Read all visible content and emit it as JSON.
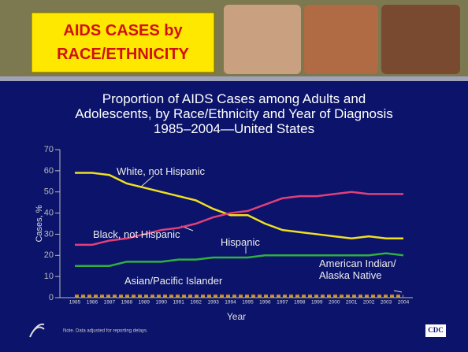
{
  "header": {
    "title": "AIDS CASES by\nRACE/ETHNICITY"
  },
  "chart_data": {
    "type": "line",
    "title": "Proportion of AIDS Cases among Adults and\nAdolescents, by Race/Ethnicity and Year of Diagnosis\n1985–2004—United States",
    "x_label": "Year",
    "y_label": "Cases, %",
    "categories": [
      "1985",
      "1986",
      "1987",
      "1988",
      "1989",
      "1990",
      "1991",
      "1992",
      "1993",
      "1994",
      "1995",
      "1996",
      "1997",
      "1998",
      "1999",
      "2000",
      "2001",
      "2002",
      "2003",
      "2004"
    ],
    "ylim": [
      0,
      70
    ],
    "yticks": [
      0,
      10,
      20,
      30,
      40,
      50,
      60,
      70
    ],
    "series": [
      {
        "name": "White, not Hispanic",
        "color": "#f0e020",
        "values": [
          59,
          59,
          58,
          54,
          52,
          50,
          48,
          46,
          42,
          39,
          39,
          35,
          32,
          31,
          30,
          29,
          28,
          29,
          28,
          28
        ]
      },
      {
        "name": "Black, not Hispanic",
        "color": "#e0407a",
        "values": [
          25,
          25,
          27,
          28,
          30,
          32,
          33,
          35,
          38,
          40,
          41,
          44,
          47,
          48,
          48,
          49,
          50,
          49,
          49,
          49
        ]
      },
      {
        "name": "Hispanic",
        "color": "#30b040",
        "values": [
          15,
          15,
          15,
          17,
          17,
          17,
          18,
          18,
          19,
          19,
          19,
          20,
          20,
          20,
          20,
          20,
          20,
          20,
          21,
          20
        ]
      },
      {
        "name": "Asian/Pacific Islander",
        "color": "#e08020",
        "dashed": true,
        "values": [
          1,
          1,
          1,
          1,
          1,
          1,
          1,
          1,
          1,
          1,
          1,
          1,
          1,
          1,
          1,
          1,
          1,
          1,
          1,
          1
        ]
      },
      {
        "name": "American Indian/\nAlaska Native",
        "color": "#c0a040",
        "dashed": true,
        "values": [
          0.3,
          0.3,
          0.3,
          0.3,
          0.3,
          0.3,
          0.3,
          0.3,
          0.3,
          0.3,
          0.3,
          0.3,
          0.3,
          0.3,
          0.3,
          0.3,
          0.3,
          0.3,
          0.3,
          0.3
        ]
      }
    ],
    "footnote": "Note. Data adjusted for reporting delays."
  },
  "logo_text": "CDC"
}
